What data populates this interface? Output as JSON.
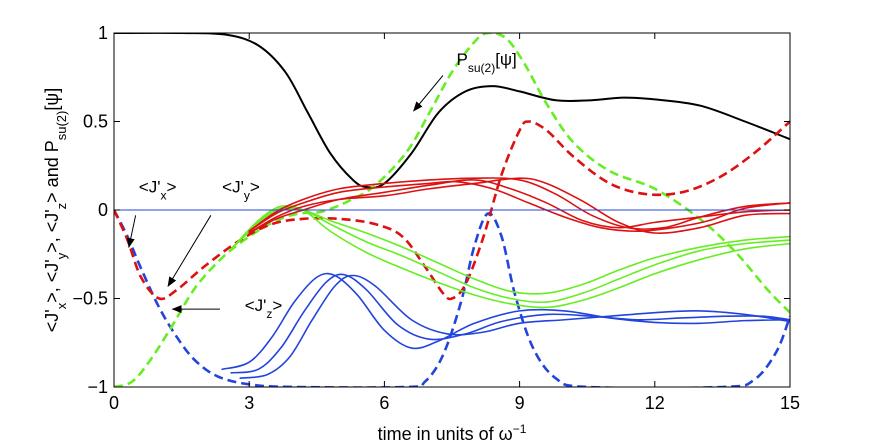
{
  "chart_data": {
    "type": "line",
    "xlabel": "time in units of ω",
    "xlabel_sup": "−1",
    "ylabel_parts": [
      "<J'",
      "x",
      ">, <J'",
      "y",
      ">, <J'",
      "z",
      "> and P",
      "su(2)",
      "[ψ]"
    ],
    "xlim": [
      0,
      15
    ],
    "ylim": [
      -1,
      1
    ],
    "xticks": [
      0,
      3,
      6,
      9,
      12,
      15
    ],
    "xtick_labels": [
      "0",
      "3",
      "6",
      "9",
      "12",
      "15"
    ],
    "yticks": [
      -1,
      -0.5,
      0,
      0.5,
      1
    ],
    "ytick_labels": [
      "−1",
      "−0.5",
      "0",
      "0.5",
      "1"
    ],
    "grid": false,
    "series": [
      {
        "id": "P_su2",
        "color": "#000000",
        "dash": false,
        "width": 2,
        "points": [
          [
            0,
            1
          ],
          [
            1.5,
            1
          ],
          [
            2.5,
            0.99
          ],
          [
            3.2,
            0.93
          ],
          [
            3.8,
            0.78
          ],
          [
            4.3,
            0.55
          ],
          [
            4.8,
            0.32
          ],
          [
            5.3,
            0.17
          ],
          [
            5.6,
            0.13
          ],
          [
            6.0,
            0.15
          ],
          [
            6.6,
            0.32
          ],
          [
            7.2,
            0.55
          ],
          [
            7.8,
            0.67
          ],
          [
            8.4,
            0.7
          ],
          [
            9.0,
            0.67
          ],
          [
            9.8,
            0.62
          ],
          [
            10.6,
            0.62
          ],
          [
            11.3,
            0.635
          ],
          [
            12.0,
            0.625
          ],
          [
            13.0,
            0.59
          ],
          [
            14.0,
            0.5
          ],
          [
            15,
            0.4
          ]
        ]
      },
      {
        "id": "Jz_main",
        "color": "#2244dd",
        "dash": true,
        "width": 2.6,
        "points": [
          [
            0,
            0
          ],
          [
            0.3,
            -0.15
          ],
          [
            0.6,
            -0.33
          ],
          [
            1.0,
            -0.55
          ],
          [
            1.4,
            -0.72
          ],
          [
            1.8,
            -0.85
          ],
          [
            2.3,
            -0.94
          ],
          [
            3.0,
            -0.985
          ],
          [
            4,
            -1
          ],
          [
            6.5,
            -1
          ],
          [
            6.9,
            -0.97
          ],
          [
            7.3,
            -0.82
          ],
          [
            7.7,
            -0.52
          ],
          [
            8.0,
            -0.2
          ],
          [
            8.3,
            -0.02
          ],
          [
            8.6,
            -0.15
          ],
          [
            8.9,
            -0.48
          ],
          [
            9.3,
            -0.78
          ],
          [
            9.8,
            -0.95
          ],
          [
            10.5,
            -1
          ],
          [
            13.5,
            -1
          ],
          [
            14.2,
            -0.96
          ],
          [
            14.7,
            -0.8
          ],
          [
            15,
            -0.6
          ]
        ]
      },
      {
        "id": "Jy_main",
        "color": "#66ee22",
        "dash": true,
        "width": 2.6,
        "points": [
          [
            0,
            -1
          ],
          [
            0.4,
            -0.97
          ],
          [
            0.8,
            -0.85
          ],
          [
            1.3,
            -0.65
          ],
          [
            1.8,
            -0.44
          ],
          [
            2.4,
            -0.27
          ],
          [
            3.0,
            -0.15
          ],
          [
            3.6,
            -0.06
          ],
          [
            4.1,
            -0.02
          ],
          [
            4.6,
            -0.01
          ],
          [
            5.2,
            0.05
          ],
          [
            5.8,
            0.14
          ],
          [
            6.5,
            0.33
          ],
          [
            7.0,
            0.55
          ],
          [
            7.5,
            0.78
          ],
          [
            8.0,
            0.95
          ],
          [
            8.3,
            1.0
          ],
          [
            8.7,
            0.97
          ],
          [
            9.1,
            0.83
          ],
          [
            9.6,
            0.6
          ],
          [
            10.2,
            0.38
          ],
          [
            11.0,
            0.22
          ],
          [
            12.0,
            0.12
          ],
          [
            13.0,
            -0.05
          ],
          [
            13.8,
            -0.24
          ],
          [
            14.5,
            -0.45
          ],
          [
            15,
            -0.58
          ]
        ]
      },
      {
        "id": "Jx_main",
        "color": "#dd1111",
        "dash": true,
        "width": 2.6,
        "points": [
          [
            0,
            0
          ],
          [
            0.3,
            -0.17
          ],
          [
            0.6,
            -0.38
          ],
          [
            1.0,
            -0.5
          ],
          [
            1.4,
            -0.45
          ],
          [
            2.0,
            -0.32
          ],
          [
            2.8,
            -0.17
          ],
          [
            3.5,
            -0.08
          ],
          [
            4.2,
            -0.05
          ],
          [
            5.0,
            -0.05
          ],
          [
            5.8,
            -0.08
          ],
          [
            6.4,
            -0.15
          ],
          [
            6.9,
            -0.32
          ],
          [
            7.3,
            -0.47
          ],
          [
            7.5,
            -0.5
          ],
          [
            7.8,
            -0.42
          ],
          [
            8.2,
            -0.15
          ],
          [
            8.6,
            0.2
          ],
          [
            9.0,
            0.45
          ],
          [
            9.2,
            0.5
          ],
          [
            9.6,
            0.45
          ],
          [
            10.2,
            0.3
          ],
          [
            11.0,
            0.15
          ],
          [
            11.8,
            0.09
          ],
          [
            12.6,
            0.1
          ],
          [
            13.4,
            0.18
          ],
          [
            14.2,
            0.32
          ],
          [
            15,
            0.5
          ]
        ]
      },
      {
        "id": "Jz_a",
        "color": "#2244dd",
        "dash": false,
        "width": 1.6,
        "points": [
          [
            2.4,
            -0.9
          ],
          [
            3.0,
            -0.86
          ],
          [
            3.5,
            -0.72
          ],
          [
            4.0,
            -0.52
          ],
          [
            4.5,
            -0.38
          ],
          [
            4.9,
            -0.37
          ],
          [
            5.4,
            -0.48
          ],
          [
            6.0,
            -0.68
          ],
          [
            6.6,
            -0.78
          ],
          [
            7.2,
            -0.74
          ],
          [
            8.0,
            -0.64
          ],
          [
            9.0,
            -0.57
          ],
          [
            10.0,
            -0.57
          ],
          [
            11.0,
            -0.61
          ],
          [
            12.0,
            -0.635
          ],
          [
            13.0,
            -0.64
          ],
          [
            14.0,
            -0.625
          ],
          [
            15,
            -0.62
          ]
        ]
      },
      {
        "id": "Jz_b",
        "color": "#2244dd",
        "dash": false,
        "width": 1.6,
        "points": [
          [
            2.6,
            -0.92
          ],
          [
            3.2,
            -0.9
          ],
          [
            3.7,
            -0.78
          ],
          [
            4.2,
            -0.58
          ],
          [
            4.7,
            -0.41
          ],
          [
            5.1,
            -0.365
          ],
          [
            5.6,
            -0.45
          ],
          [
            6.3,
            -0.65
          ],
          [
            7.0,
            -0.73
          ],
          [
            7.8,
            -0.7
          ],
          [
            8.6,
            -0.63
          ],
          [
            9.6,
            -0.59
          ],
          [
            10.6,
            -0.6
          ],
          [
            11.6,
            -0.62
          ],
          [
            12.6,
            -0.61
          ],
          [
            13.6,
            -0.6
          ],
          [
            14.4,
            -0.6
          ],
          [
            15,
            -0.62
          ]
        ]
      },
      {
        "id": "Jz_c",
        "color": "#2244dd",
        "dash": false,
        "width": 1.6,
        "points": [
          [
            2.8,
            -0.95
          ],
          [
            3.4,
            -0.93
          ],
          [
            3.9,
            -0.83
          ],
          [
            4.4,
            -0.62
          ],
          [
            4.9,
            -0.43
          ],
          [
            5.3,
            -0.37
          ],
          [
            5.8,
            -0.43
          ],
          [
            6.6,
            -0.62
          ],
          [
            7.4,
            -0.7
          ],
          [
            8.2,
            -0.69
          ],
          [
            9.0,
            -0.64
          ],
          [
            10.0,
            -0.62
          ],
          [
            11.0,
            -0.6
          ],
          [
            12.0,
            -0.58
          ],
          [
            13.0,
            -0.57
          ],
          [
            14.0,
            -0.59
          ],
          [
            15,
            -0.63
          ]
        ]
      },
      {
        "id": "Jy_a",
        "color": "#66ee22",
        "dash": false,
        "width": 1.6,
        "points": [
          [
            2.6,
            -0.22
          ],
          [
            3.2,
            -0.08
          ],
          [
            3.7,
            0.0
          ],
          [
            4.2,
            0.0
          ],
          [
            4.8,
            -0.06
          ],
          [
            5.6,
            -0.13
          ],
          [
            6.4,
            -0.21
          ],
          [
            7.2,
            -0.3
          ],
          [
            8.0,
            -0.39
          ],
          [
            8.8,
            -0.46
          ],
          [
            9.6,
            -0.47
          ],
          [
            10.4,
            -0.42
          ],
          [
            11.2,
            -0.34
          ],
          [
            12.0,
            -0.27
          ],
          [
            13.0,
            -0.21
          ],
          [
            14.0,
            -0.17
          ],
          [
            15,
            -0.15
          ]
        ]
      },
      {
        "id": "Jy_b",
        "color": "#66ee22",
        "dash": false,
        "width": 1.6,
        "points": [
          [
            2.6,
            -0.22
          ],
          [
            3.2,
            -0.07
          ],
          [
            3.7,
            0.01
          ],
          [
            4.2,
            0.0
          ],
          [
            4.8,
            -0.08
          ],
          [
            5.6,
            -0.18
          ],
          [
            6.4,
            -0.26
          ],
          [
            7.2,
            -0.35
          ],
          [
            8.0,
            -0.44
          ],
          [
            8.8,
            -0.5
          ],
          [
            9.6,
            -0.52
          ],
          [
            10.4,
            -0.47
          ],
          [
            11.2,
            -0.39
          ],
          [
            12.0,
            -0.31
          ],
          [
            13.0,
            -0.23
          ],
          [
            14.0,
            -0.19
          ],
          [
            15,
            -0.17
          ]
        ]
      },
      {
        "id": "Jy_c",
        "color": "#66ee22",
        "dash": false,
        "width": 1.6,
        "points": [
          [
            2.6,
            -0.22
          ],
          [
            3.2,
            -0.06
          ],
          [
            3.7,
            0.02
          ],
          [
            4.2,
            0.0
          ],
          [
            4.8,
            -0.12
          ],
          [
            5.6,
            -0.24
          ],
          [
            6.4,
            -0.33
          ],
          [
            7.2,
            -0.41
          ],
          [
            8.0,
            -0.48
          ],
          [
            8.8,
            -0.53
          ],
          [
            9.6,
            -0.55
          ],
          [
            10.4,
            -0.51
          ],
          [
            11.2,
            -0.44
          ],
          [
            12.0,
            -0.36
          ],
          [
            13.0,
            -0.28
          ],
          [
            14.0,
            -0.22
          ],
          [
            15,
            -0.19
          ]
        ]
      },
      {
        "id": "Jx_a",
        "color": "#dd1111",
        "dash": false,
        "width": 1.6,
        "points": [
          [
            3.0,
            -0.13
          ],
          [
            3.6,
            -0.05
          ],
          [
            4.2,
            0.0
          ],
          [
            5.0,
            0.06
          ],
          [
            6.0,
            0.1
          ],
          [
            7.0,
            0.14
          ],
          [
            8.0,
            0.17
          ],
          [
            8.8,
            0.12
          ],
          [
            9.6,
            0.04
          ],
          [
            10.4,
            -0.06
          ],
          [
            11.2,
            -0.1
          ],
          [
            12.0,
            -0.07
          ],
          [
            13.0,
            -0.04
          ],
          [
            14.0,
            -0.01
          ],
          [
            15,
            0.0
          ]
        ]
      },
      {
        "id": "Jx_b",
        "color": "#dd1111",
        "dash": false,
        "width": 1.6,
        "points": [
          [
            3.0,
            -0.13
          ],
          [
            3.6,
            -0.04
          ],
          [
            4.2,
            0.02
          ],
          [
            5.0,
            0.06
          ],
          [
            6.0,
            0.08
          ],
          [
            7.0,
            0.12
          ],
          [
            8.0,
            0.15
          ],
          [
            9.0,
            0.18
          ],
          [
            9.6,
            0.15
          ],
          [
            10.4,
            0.05
          ],
          [
            11.2,
            -0.07
          ],
          [
            12.0,
            -0.13
          ],
          [
            13.0,
            -0.1
          ],
          [
            14.0,
            -0.03
          ],
          [
            15,
            -0.02
          ]
        ]
      },
      {
        "id": "Jx_c",
        "color": "#dd1111",
        "dash": false,
        "width": 1.6,
        "points": [
          [
            3.0,
            -0.12
          ],
          [
            3.6,
            -0.02
          ],
          [
            4.2,
            0.04
          ],
          [
            5.0,
            0.1
          ],
          [
            6.0,
            0.13
          ],
          [
            7.0,
            0.15
          ],
          [
            7.6,
            0.16
          ],
          [
            8.4,
            0.12
          ],
          [
            9.2,
            0.04
          ],
          [
            10.0,
            -0.04
          ],
          [
            10.8,
            -0.1
          ],
          [
            11.6,
            -0.12
          ],
          [
            12.4,
            -0.1
          ],
          [
            13.2,
            -0.06
          ],
          [
            14.0,
            0.01
          ],
          [
            15,
            0.04
          ]
        ]
      },
      {
        "id": "Jx_d",
        "color": "#dd1111",
        "dash": false,
        "width": 1.6,
        "points": [
          [
            3.0,
            -0.12
          ],
          [
            3.6,
            -0.01
          ],
          [
            4.2,
            0.06
          ],
          [
            5.0,
            0.12
          ],
          [
            6.0,
            0.15
          ],
          [
            7.0,
            0.17
          ],
          [
            8.0,
            0.18
          ],
          [
            9.0,
            0.17
          ],
          [
            9.8,
            0.09
          ],
          [
            10.6,
            -0.03
          ],
          [
            11.4,
            -0.1
          ],
          [
            12.2,
            -0.1
          ],
          [
            13.0,
            -0.04
          ],
          [
            14.0,
            0.02
          ],
          [
            15,
            0.04
          ]
        ]
      },
      {
        "id": "zero_line",
        "color": "#2244dd",
        "dash": false,
        "width": 1,
        "points": [
          [
            0,
            0
          ],
          [
            15,
            0
          ]
        ]
      }
    ],
    "annotations": [
      {
        "id": "P",
        "parts": [
          "P",
          "su(2)",
          "[ψ]"
        ],
        "text_x": 7.6,
        "text_y": 0.82,
        "arrow_from": [
          7.3,
          0.76
        ],
        "arrow_to": [
          6.65,
          0.56
        ]
      },
      {
        "id": "Jx",
        "parts": [
          "<J'",
          "x",
          ">"
        ],
        "text_x": 0.55,
        "text_y": 0.1,
        "arrow_from": [
          0.48,
          -0.03
        ],
        "arrow_to": [
          0.33,
          -0.21
        ]
      },
      {
        "id": "Jy",
        "parts": [
          "<J'",
          "y",
          ">"
        ],
        "text_x": 2.4,
        "text_y": 0.1,
        "arrow_from": [
          2.15,
          -0.03
        ],
        "arrow_to": [
          1.2,
          -0.43
        ]
      },
      {
        "id": "Jz",
        "parts": [
          "<J'",
          "z",
          ">"
        ],
        "text_x": 2.9,
        "text_y": -0.57,
        "arrow_from": [
          2.35,
          -0.56
        ],
        "arrow_to": [
          1.3,
          -0.56
        ]
      }
    ]
  }
}
